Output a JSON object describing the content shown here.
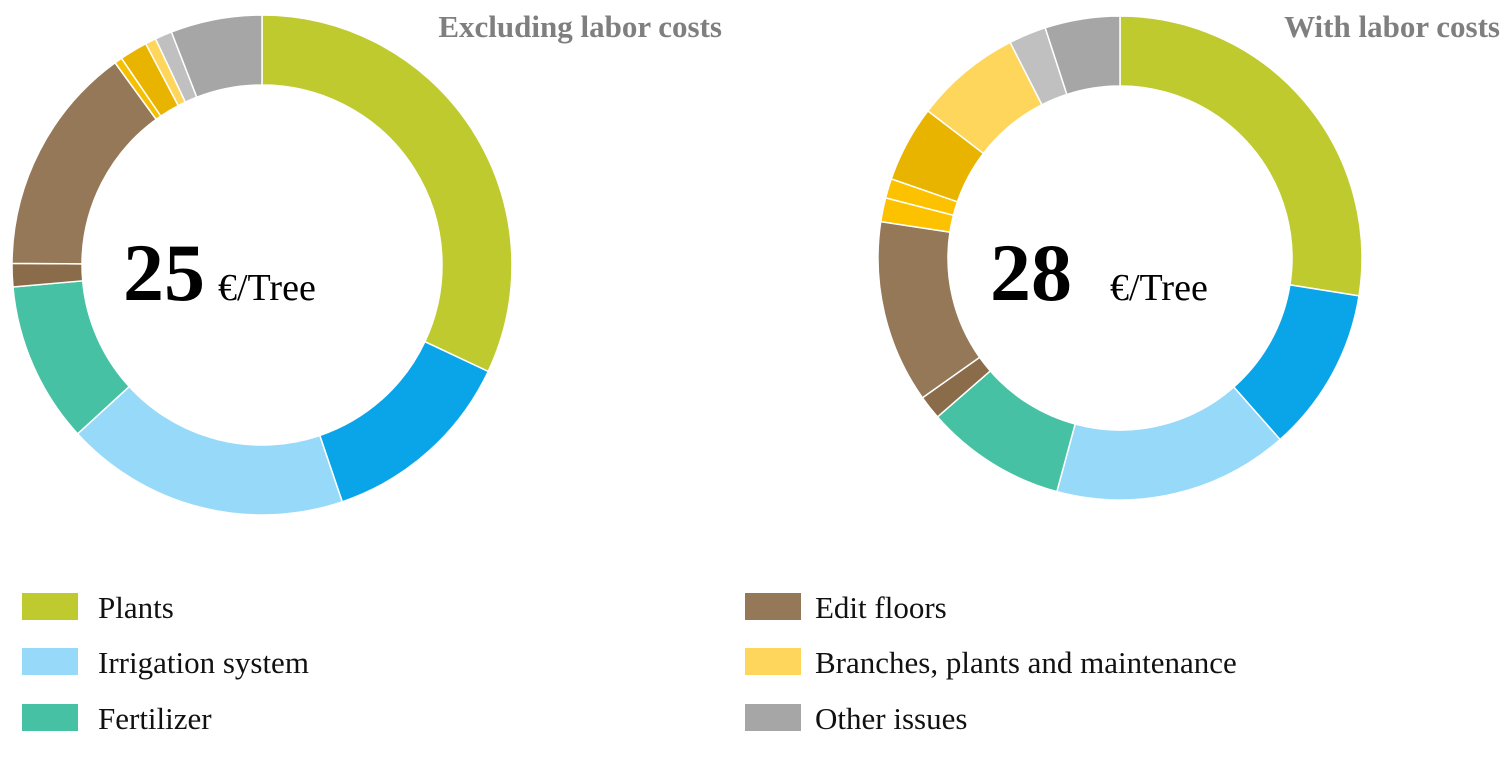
{
  "chart_data": [
    {
      "type": "donut",
      "title": "Excluding labor costs",
      "center_value": "25",
      "center_unit": "€/Tree",
      "values": [
        32,
        12.8,
        18.4,
        10.4,
        1.5,
        14.9,
        0.5,
        1.8,
        0.7,
        1.1,
        5.9
      ],
      "colors": [
        "#bfca2f",
        "#0aa5e9",
        "#97d9f8",
        "#47c1a3",
        "#8a6b4a",
        "#957858",
        "#f5c000",
        "#e9b400",
        "#ffd65c",
        "#c0c0c0",
        "#a6a6a6"
      ]
    },
    {
      "type": "donut",
      "title": "With labor costs",
      "center_value": "28",
      "center_unit": "€/Tree",
      "values": [
        27.5,
        11,
        15.7,
        9.4,
        1.6,
        12.2,
        1.6,
        1.3,
        5.1,
        7.1,
        2.5,
        5
      ],
      "colors": [
        "#bfca2f",
        "#0aa5e9",
        "#97d9f8",
        "#47c1a3",
        "#8a6b4a",
        "#957858",
        "#fcc200",
        "#fcc200",
        "#e9b400",
        "#ffd65c",
        "#c0c0c0",
        "#a6a6a6"
      ]
    }
  ],
  "legend": [
    {
      "name": "Plants",
      "color": "#bfca2f"
    },
    {
      "name": "Irrigation system",
      "color": "#97d9f8"
    },
    {
      "name": "Fertilizer",
      "color": "#47c1a3"
    },
    {
      "name": "Edit floors",
      "color": "#957858"
    },
    {
      "name": "Branches, plants and maintenance",
      "color": "#ffd65c"
    },
    {
      "name": "Other issues",
      "color": "#a6a6a6"
    }
  ]
}
